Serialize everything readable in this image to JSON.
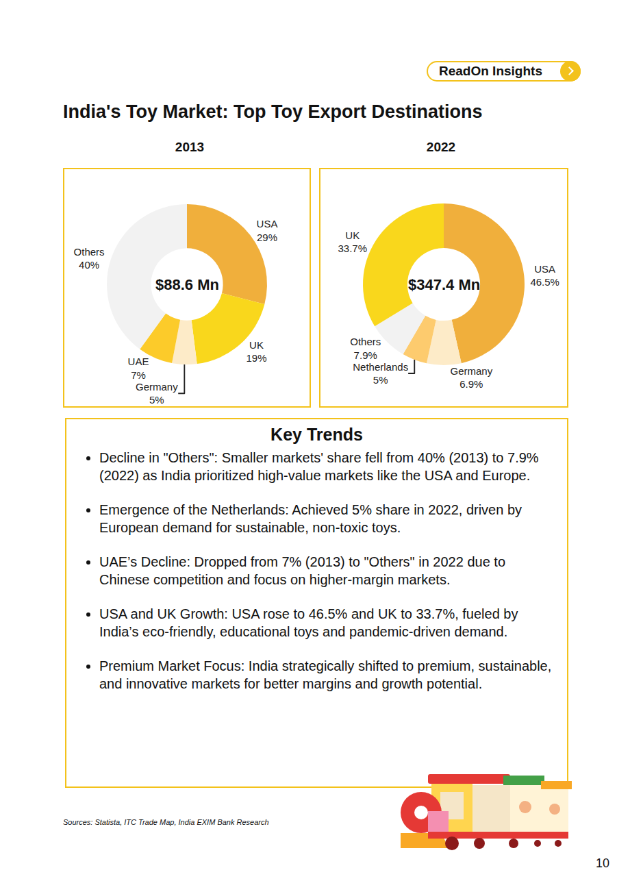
{
  "header": {
    "badge": "ReadOn Insights",
    "title": "India's Toy Market: Top Toy Export Destinations"
  },
  "chart_data": [
    {
      "type": "pie",
      "title": "2013",
      "annotations": [
        "$88.6 Mn"
      ],
      "categories": [
        "USA",
        "UK",
        "Germany",
        "UAE",
        "Others"
      ],
      "values": [
        29,
        19,
        5,
        7,
        40
      ],
      "value_labels": [
        "29%",
        "19%",
        "5%",
        "7%",
        "40%"
      ],
      "colors": [
        "#F0AF3C",
        "#F9D71C",
        "#FDEBC8",
        "#FCCB2A",
        "#F2F2F2"
      ],
      "data_labels": true
    },
    {
      "type": "pie",
      "title": "2022",
      "annotations": [
        "$347.4 Mn"
      ],
      "categories": [
        "USA",
        "Germany",
        "Netherlands",
        "Others",
        "UK"
      ],
      "values": [
        46.5,
        6.9,
        5,
        7.9,
        33.7
      ],
      "value_labels": [
        "46.5%",
        "6.9%",
        "5%",
        "7.9%",
        "33.7%"
      ],
      "colors": [
        "#F0AF3C",
        "#FDEBC8",
        "#FDCB6E",
        "#F2F2F2",
        "#F9D71C"
      ],
      "data_labels": true
    }
  ],
  "key_trends": {
    "title": "Key Trends",
    "items": [
      "Decline in \"Others\": Smaller markets' share fell from 40% (2013) to 7.9% (2022) as India prioritized high-value markets like the USA and Europe.",
      "Emergence of the Netherlands: Achieved 5% share in 2022, driven by European demand for sustainable, non-toxic toys.",
      "UAE’s Decline: Dropped from 7% (2013) to \"Others\" in 2022 due to Chinese competition and focus on higher-margin markets.",
      "USA and UK Growth: USA rose to 46.5% and UK to 33.7%, fueled by India’s eco-friendly, educational toys and pandemic-driven demand.",
      "Premium Market Focus: India strategically shifted to premium, sustainable, and innovative markets for better margins and growth potential."
    ]
  },
  "sources": "Sources: Statista, ITC Trade Map, India EXIM Bank Research",
  "page_number": "10"
}
